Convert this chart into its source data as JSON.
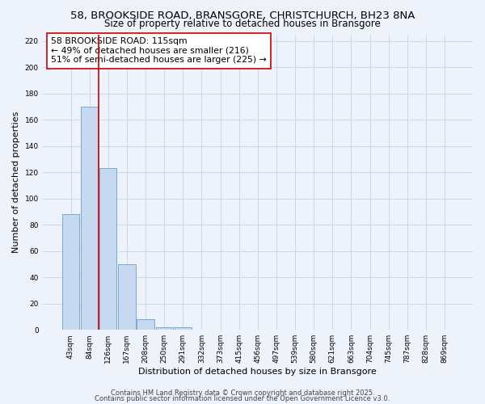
{
  "title_line1": "58, BROOKSIDE ROAD, BRANSGORE, CHRISTCHURCH, BH23 8NA",
  "title_line2": "Size of property relative to detached houses in Bransgore",
  "xlabel": "Distribution of detached houses by size in Bransgore",
  "ylabel": "Number of detached properties",
  "bar_categories": [
    "43sqm",
    "84sqm",
    "126sqm",
    "167sqm",
    "208sqm",
    "250sqm",
    "291sqm",
    "332sqm",
    "373sqm",
    "415sqm",
    "456sqm",
    "497sqm",
    "539sqm",
    "580sqm",
    "621sqm",
    "663sqm",
    "704sqm",
    "745sqm",
    "787sqm",
    "828sqm",
    "869sqm"
  ],
  "bar_values": [
    88,
    170,
    123,
    50,
    8,
    2,
    2,
    0,
    0,
    0,
    0,
    0,
    0,
    0,
    0,
    0,
    0,
    0,
    0,
    0,
    0
  ],
  "bar_color": "#c6d9f0",
  "bar_edge_color": "#7aaad0",
  "vline_color": "#cc0000",
  "annotation_text": "58 BROOKSIDE ROAD: 115sqm\n← 49% of detached houses are smaller (216)\n51% of semi-detached houses are larger (225) →",
  "annotation_box_color": "#ffffff",
  "annotation_box_edge": "#cc0000",
  "ylim": [
    0,
    225
  ],
  "yticks": [
    0,
    20,
    40,
    60,
    80,
    100,
    120,
    140,
    160,
    180,
    200,
    220
  ],
  "grid_color": "#c8d8ec",
  "background_color": "#eef3fb",
  "footer_line1": "Contains HM Land Registry data © Crown copyright and database right 2025.",
  "footer_line2": "Contains public sector information licensed under the Open Government Licence v3.0.",
  "title_fontsize": 9.5,
  "subtitle_fontsize": 8.5,
  "xlabel_fontsize": 8,
  "ylabel_fontsize": 8,
  "annotation_fontsize": 7.8,
  "tick_fontsize": 6.5
}
